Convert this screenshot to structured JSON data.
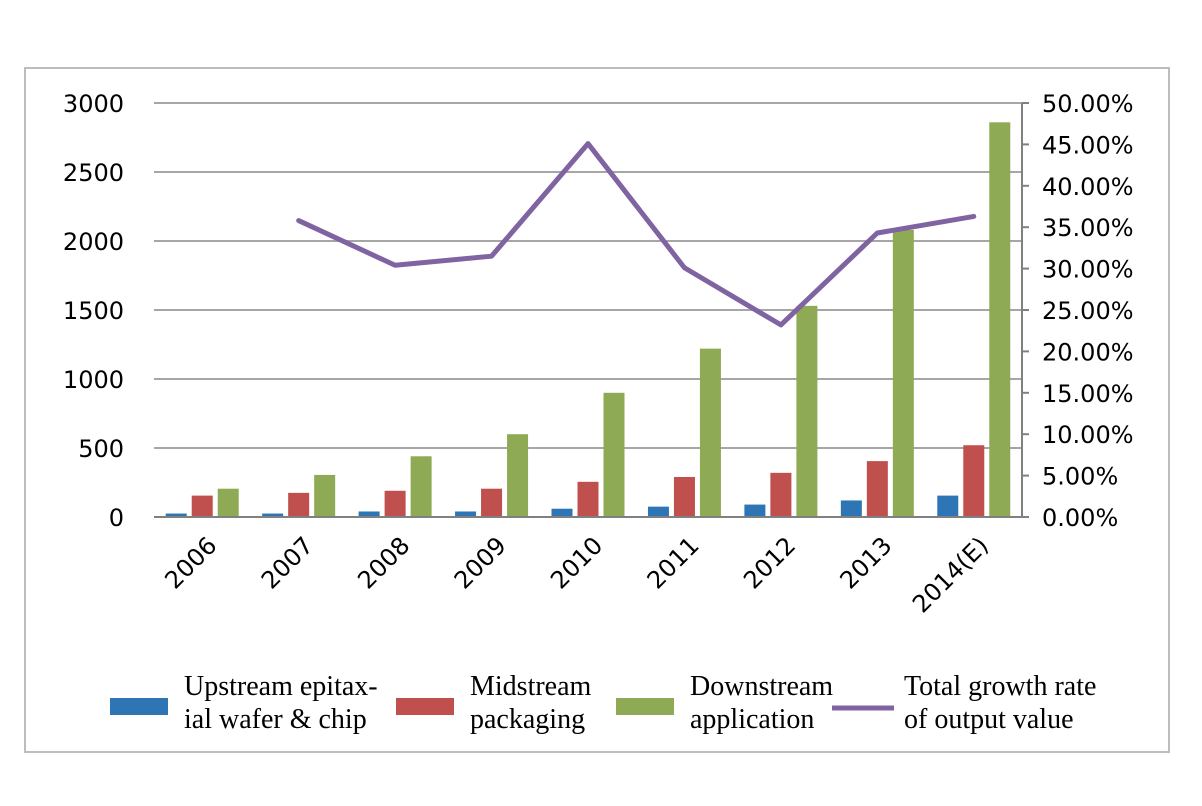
{
  "chart_data": {
    "type": "bar",
    "categories": [
      "2006",
      "2007",
      "2008",
      "2009",
      "2010",
      "2011",
      "2012",
      "2013",
      "2014(E)"
    ],
    "series": [
      {
        "name": "Upstream epitaxial wafer & chip",
        "legend_lines": [
          "Upstream epitax-",
          "ial wafer & chip"
        ],
        "type": "bar",
        "axis": "left",
        "color": "#2e75b6",
        "values": [
          25,
          25,
          40,
          40,
          60,
          75,
          90,
          120,
          155
        ]
      },
      {
        "name": "Midstream packaging",
        "legend_lines": [
          "Midstream",
          "packaging"
        ],
        "type": "bar",
        "axis": "left",
        "color": "#c0504d",
        "values": [
          155,
          175,
          190,
          205,
          255,
          290,
          320,
          405,
          520
        ]
      },
      {
        "name": "Downstream application",
        "legend_lines": [
          "Downstream",
          "application"
        ],
        "type": "bar",
        "axis": "left",
        "color": "#8faa55",
        "values": [
          205,
          305,
          440,
          600,
          900,
          1220,
          1530,
          2080,
          2860
        ]
      },
      {
        "name": "Total growth rate of output value",
        "legend_lines": [
          "Total growth rate",
          "of output value"
        ],
        "type": "line",
        "axis": "right",
        "color": "#8064a2",
        "values": [
          null,
          35.8,
          30.4,
          31.5,
          45.1,
          30.1,
          23.2,
          34.3,
          36.3
        ]
      }
    ],
    "left_axis": {
      "ylim": [
        0,
        3000
      ],
      "ticks": [
        "0",
        "500",
        "1000",
        "1500",
        "2000",
        "2500",
        "3000"
      ]
    },
    "right_axis": {
      "ylim": [
        0,
        50
      ],
      "ticks": [
        "0.00%",
        "5.00%",
        "10.00%",
        "15.00%",
        "20.00%",
        "25.00%",
        "30.00%",
        "35.00%",
        "40.00%",
        "45.00%",
        "50.00%"
      ]
    },
    "grid": true,
    "legend_position": "bottom"
  }
}
